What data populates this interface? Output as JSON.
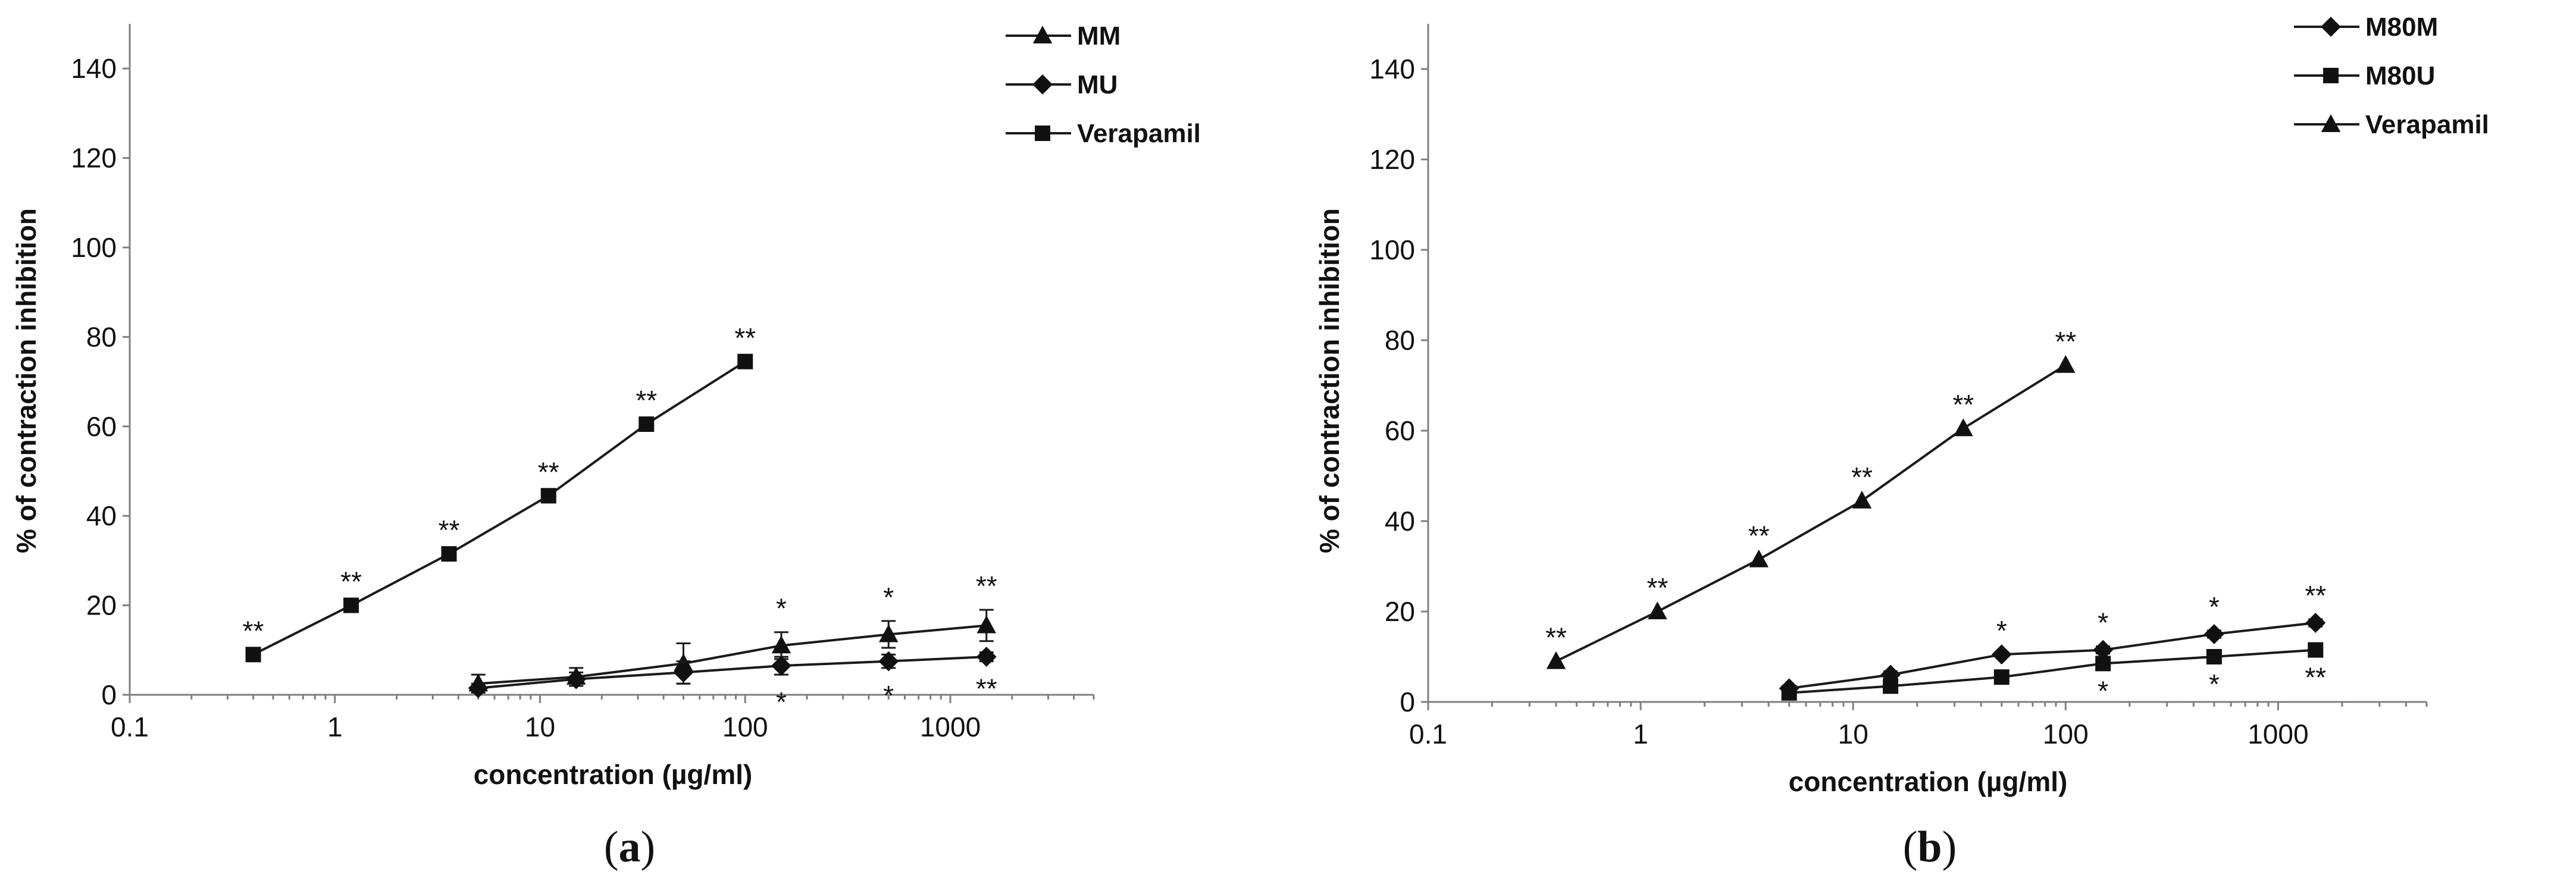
{
  "chart_data": [
    {
      "type": "line",
      "panel_label": "a",
      "xlabel": "concentration (µg/ml)",
      "ylabel": "% of contraction inhibition",
      "xscale": "log",
      "xlim": [
        0.1,
        5000
      ],
      "ylim": [
        0,
        150
      ],
      "x_ticks": [
        0.1,
        1,
        10,
        100,
        1000
      ],
      "x_tick_labels": [
        "0.1",
        "1",
        "10",
        "100",
        "1000"
      ],
      "y_ticks": [
        0,
        20,
        40,
        60,
        80,
        100,
        120,
        140
      ],
      "y_tick_labels": [
        "0",
        "20",
        "40",
        "60",
        "80",
        "100",
        "120",
        "140"
      ],
      "legend_position": "top-right",
      "series": [
        {
          "name": "MM",
          "marker": "triangle",
          "x": [
            5,
            15,
            50,
            150,
            500,
            1500
          ],
          "y": [
            2.5,
            4,
            7,
            11,
            13.5,
            15.5
          ],
          "err": [
            2,
            2,
            4.5,
            3,
            3,
            3.5
          ],
          "sig": [
            "",
            "",
            "",
            "*",
            "*",
            "**"
          ],
          "sig_pos": "above"
        },
        {
          "name": "MU",
          "marker": "diamond",
          "x": [
            5,
            15,
            50,
            150,
            500,
            1500
          ],
          "y": [
            1.5,
            3.5,
            5,
            6.5,
            7.5,
            8.5
          ],
          "err": [
            1,
            1.5,
            2.5,
            2,
            1.5,
            1
          ],
          "sig": [
            "",
            "",
            "",
            "*",
            "*",
            "**"
          ],
          "sig_pos": "below"
        },
        {
          "name": "Verapamil",
          "marker": "square",
          "x": [
            0.4,
            1.2,
            3.6,
            11,
            33,
            100
          ],
          "y": [
            9,
            20,
            31.5,
            44.5,
            60.5,
            74.5
          ],
          "err": [
            0,
            0,
            0,
            0,
            0,
            0
          ],
          "sig": [
            "**",
            "**",
            "**",
            "**",
            "**",
            "**"
          ],
          "sig_pos": "above"
        }
      ]
    },
    {
      "type": "line",
      "panel_label": "b",
      "xlabel": "concentration (µg/ml)",
      "ylabel": "% of contraction inhibition",
      "xscale": "log",
      "xlim": [
        0.1,
        5000
      ],
      "ylim": [
        0,
        150
      ],
      "x_ticks": [
        0.1,
        1,
        10,
        100,
        1000
      ],
      "x_tick_labels": [
        "0.1",
        "1",
        "10",
        "100",
        "1000"
      ],
      "y_ticks": [
        0,
        20,
        40,
        60,
        80,
        100,
        120,
        140
      ],
      "y_tick_labels": [
        "0",
        "20",
        "40",
        "60",
        "80",
        "100",
        "120",
        "140"
      ],
      "legend_position": "top-right",
      "series": [
        {
          "name": "M80M",
          "marker": "diamond",
          "x": [
            5,
            15,
            50,
            150,
            500,
            1500
          ],
          "y": [
            3,
            6,
            10.5,
            11.5,
            15,
            17.5
          ],
          "err": [
            0,
            0.8,
            0,
            0.8,
            0.8,
            0.8
          ],
          "sig": [
            "",
            "",
            "*",
            "*",
            "*",
            "**"
          ],
          "sig_pos": "above"
        },
        {
          "name": "M80U",
          "marker": "square",
          "x": [
            5,
            15,
            50,
            150,
            500,
            1500
          ],
          "y": [
            2,
            3.5,
            5.5,
            8.5,
            10,
            11.5
          ],
          "err": [
            0,
            0,
            0,
            0,
            0,
            0
          ],
          "sig": [
            "",
            "",
            "",
            "*",
            "*",
            "**"
          ],
          "sig_pos": "below"
        },
        {
          "name": "Verapamil",
          "marker": "triangle",
          "x": [
            0.4,
            1.2,
            3.6,
            11,
            33,
            100
          ],
          "y": [
            9,
            20,
            31.5,
            44.5,
            60.5,
            74.5
          ],
          "err": [
            0,
            0,
            0,
            0,
            0,
            0
          ],
          "sig": [
            "**",
            "**",
            "**",
            "**",
            "**",
            "**"
          ],
          "sig_pos": "above"
        }
      ]
    }
  ]
}
